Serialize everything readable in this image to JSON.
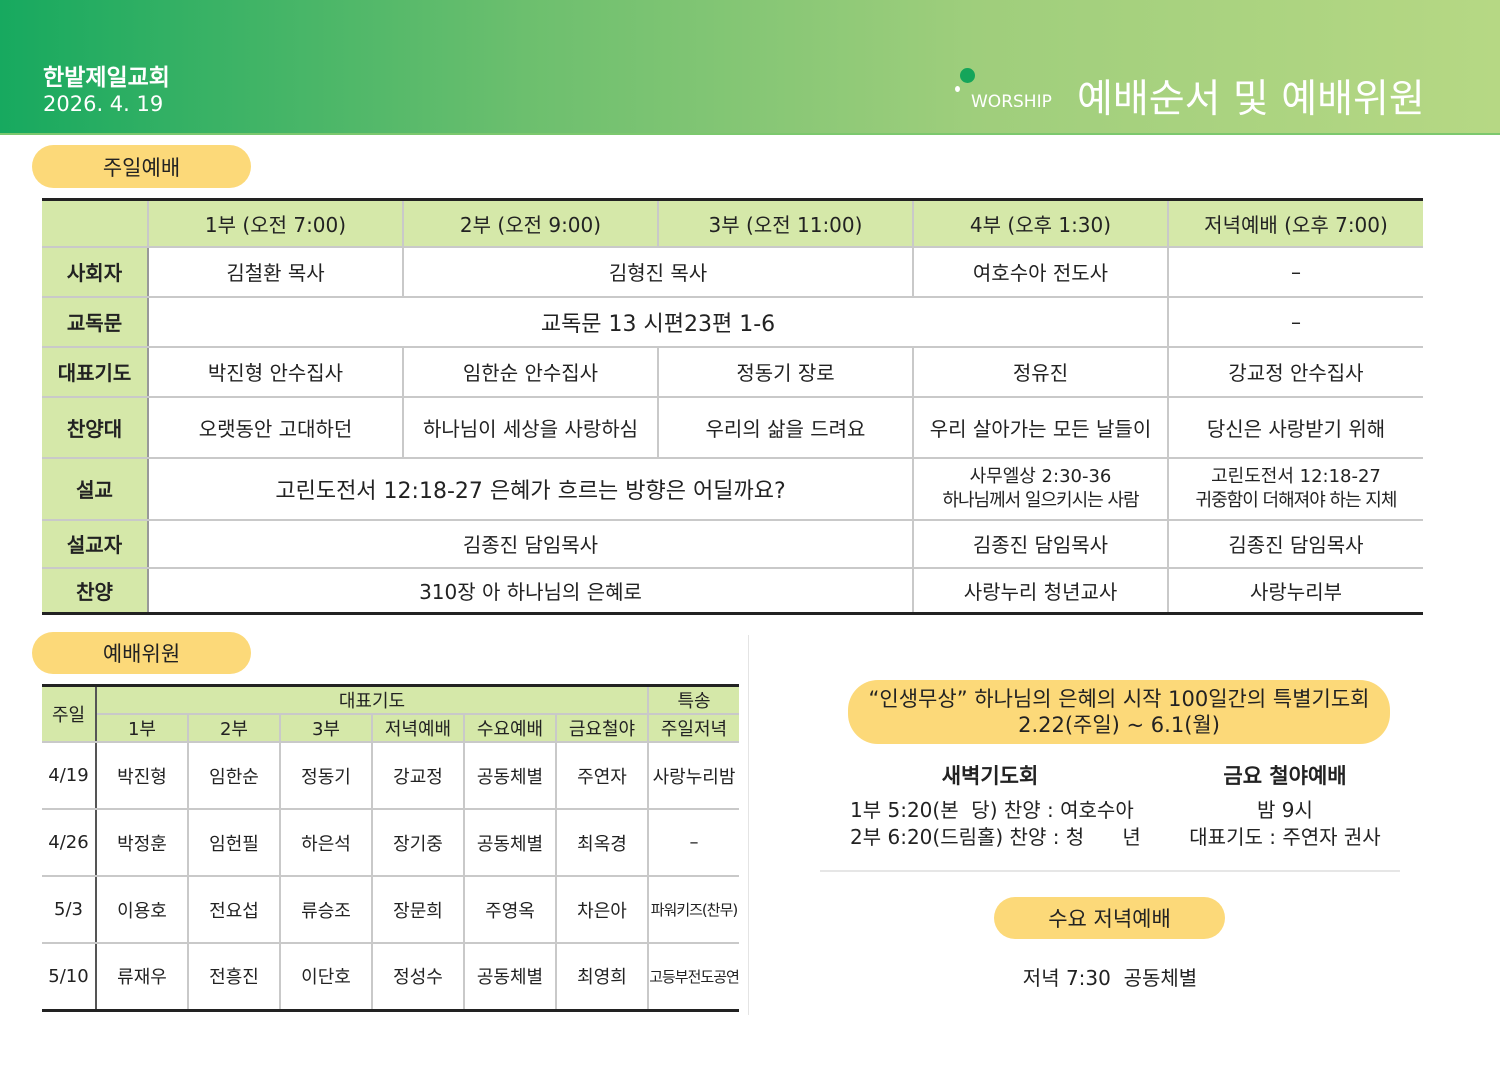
{
  "header": {
    "church": "한밭제일교회",
    "date": "2026. 4. 19",
    "tag": "WORSHIP",
    "title": "예배순서 및 예배위원"
  },
  "colors": {
    "header_start": "#17a95f",
    "header_end": "#b6d884",
    "pill": "#fcd979",
    "table_header": "#d5e8a9"
  },
  "sunday": {
    "label": "주일예배",
    "columns": [
      "1부 (오전 7:00)",
      "2부 (오전 9:00)",
      "3부 (오전 11:00)",
      "4부 (오후 1:30)",
      "저녁예배 (오후 7:00)"
    ],
    "rows": {
      "host": {
        "label": "사회자",
        "c1": "김철환 목사",
        "c23": "김형진 목사",
        "c4": "여호수아 전도사",
        "c5": "–"
      },
      "reading": {
        "label": "교독문",
        "c1234": "교독문 13 시편23편 1-6",
        "c5": "–"
      },
      "prayer": {
        "label": "대표기도",
        "c1": "박진형 안수집사",
        "c2": "임한순 안수집사",
        "c3": "정동기 장로",
        "c4": "정유진",
        "c5": "강교정 안수집사"
      },
      "choir": {
        "label": "찬양대",
        "c1": "오랫동안 고대하던",
        "c2": "하나님이 세상을 사랑하심",
        "c3": "우리의 삶을 드려요",
        "c4": "우리 살아가는 모든 날들이",
        "c5": "당신은 사랑받기 위해"
      },
      "sermon": {
        "label": "설교",
        "c123": "고린도전서 12:18-27  은혜가 흐르는 방향은 어딜까요?",
        "c4a": "사무엘상 2:30-36",
        "c4b": "하나님께서 일으키시는 사람",
        "c5a": "고린도전서 12:18-27",
        "c5b": "귀중함이 더해져야 하는 지체"
      },
      "preacher": {
        "label": "설교자",
        "c123": "김종진 담임목사",
        "c4": "김종진 담임목사",
        "c5": "김종진 담임목사"
      },
      "hymn": {
        "label": "찬양",
        "c123": "310장 아 하나님의 은혜로",
        "c4": "사랑누리 청년교사",
        "c5": "사랑누리부"
      }
    }
  },
  "committee": {
    "label": "예배위원",
    "head": {
      "date": "주일",
      "prayer": "대표기도",
      "special": "특송",
      "cols": [
        "1부",
        "2부",
        "3부",
        "저녁예배",
        "수요예배",
        "금요철야",
        "주일저녁"
      ]
    },
    "rows": [
      [
        "4/19",
        "박진형",
        "임한순",
        "정동기",
        "강교정",
        "공동체별",
        "주연자",
        "사랑누리밤"
      ],
      [
        "4/26",
        "박정훈",
        "임헌필",
        "하은석",
        "장기중",
        "공동체별",
        "최옥경",
        "–"
      ],
      [
        "5/3",
        "이용호",
        "전요섭",
        "류승조",
        "장문희",
        "주영옥",
        "차은아",
        "파워키즈(찬무)"
      ],
      [
        "5/10",
        "류재우",
        "전흥진",
        "이단호",
        "정성수",
        "공동체별",
        "최영희",
        "고등부전도공연"
      ]
    ]
  },
  "special": {
    "line1": "“인생무상” 하나님의 은혜의 시작 100일간의 특별기도회",
    "line2": "2.22(주일) ~ 6.1(월)"
  },
  "dawn": {
    "title": "새벽기도회",
    "l1": "1부 5:20(본  당) 찬양 : 여호수아",
    "l2": "2부 6:20(드림홀) 찬양 : 청      년"
  },
  "friday": {
    "title": "금요 철야예배",
    "l1": "밤 9시",
    "l2": "대표기도 : 주연자 권사"
  },
  "wednesday": {
    "label": "수요 저녁예배",
    "text": "저녁 7:30  공동체별"
  }
}
